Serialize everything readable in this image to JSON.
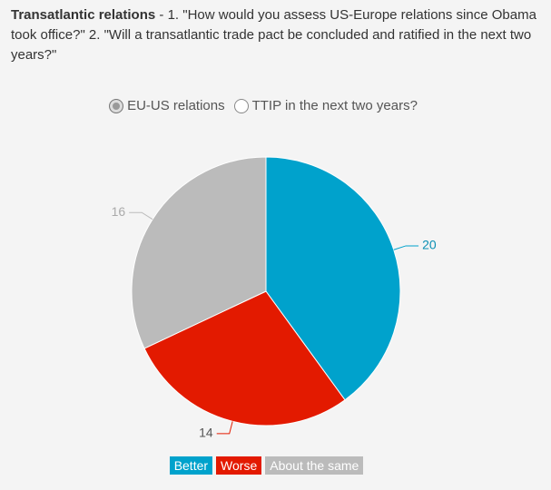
{
  "title": "Transatlantic relations",
  "subtitle": "- 1. \"How would you assess US-Europe relations since Obama took office?\" 2. \"Will a transatlantic trade pact be concluded and ratified in the next two years?\"",
  "options": [
    {
      "label": "EU-US relations",
      "selected": true
    },
    {
      "label": "TTIP in the next two years?",
      "selected": false
    }
  ],
  "chart_data": {
    "type": "pie",
    "categories": [
      "Better",
      "Worse",
      "About the same"
    ],
    "values": [
      20,
      14,
      16
    ],
    "colors": [
      "#00a2cc",
      "#e31a00",
      "#bbbbbb"
    ]
  }
}
